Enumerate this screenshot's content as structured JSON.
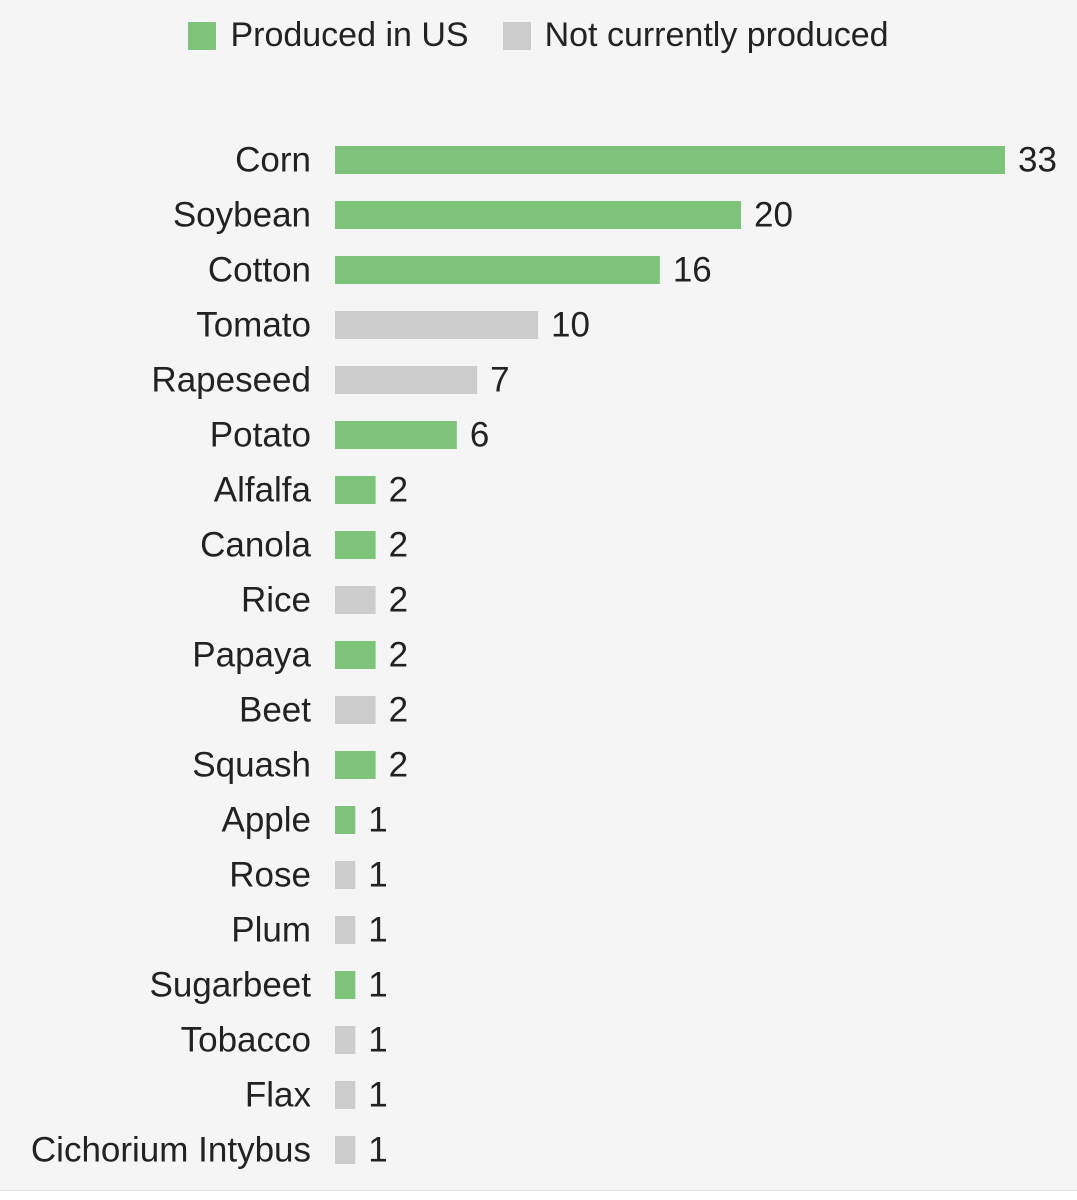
{
  "colors": {
    "produced": "#7dc47a",
    "not_produced": "#cccccc",
    "text": "#222222"
  },
  "legend": [
    {
      "label": "Produced in US",
      "color": "#7dc47a"
    },
    {
      "label": "Not currently produced",
      "color": "#cccccc"
    }
  ],
  "chart_data": {
    "type": "bar",
    "orientation": "horizontal",
    "title": "",
    "xlabel": "",
    "ylabel": "",
    "grid": false,
    "legend_position": "top-center",
    "data_labels": true,
    "categories": [
      "Corn",
      "Soybean",
      "Cotton",
      "Tomato",
      "Rapeseed",
      "Potato",
      "Alfalfa",
      "Canola",
      "Rice",
      "Papaya",
      "Beet",
      "Squash",
      "Apple",
      "Rose",
      "Plum",
      "Sugarbeet",
      "Tobacco",
      "Flax",
      "Cichorium Intybus"
    ],
    "values": [
      33,
      20,
      16,
      10,
      7,
      6,
      2,
      2,
      2,
      2,
      2,
      2,
      1,
      1,
      1,
      1,
      1,
      1,
      1
    ],
    "produced_in_us": [
      true,
      true,
      true,
      false,
      false,
      true,
      true,
      true,
      false,
      true,
      false,
      true,
      true,
      false,
      false,
      true,
      false,
      false,
      false
    ],
    "xlim": [
      0,
      33
    ]
  }
}
